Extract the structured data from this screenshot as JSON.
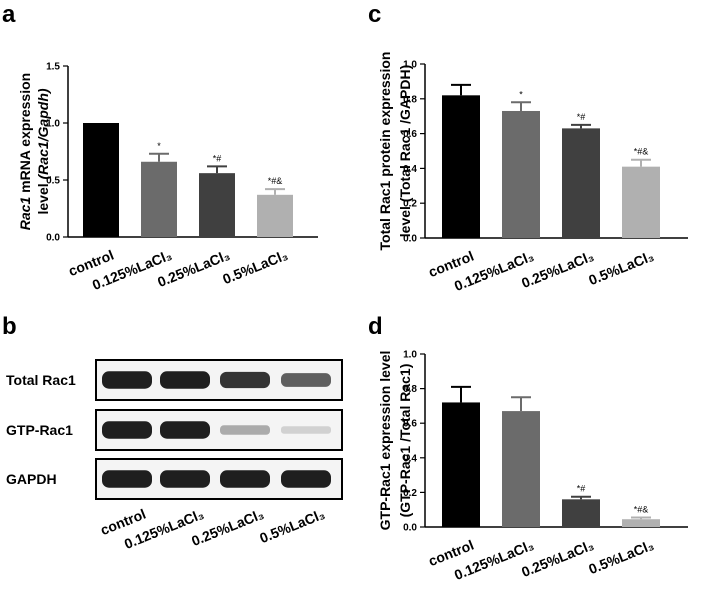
{
  "panels": {
    "a": {
      "letter": "a"
    },
    "b": {
      "letter": "b"
    },
    "c": {
      "letter": "c"
    },
    "d": {
      "letter": "d"
    }
  },
  "categories": [
    "control",
    "0.125%LaCl₃",
    "0.25%LaCl₃",
    "0.5%LaCl₃"
  ],
  "colors": {
    "bars": [
      "#000000",
      "#6b6b6b",
      "#404040",
      "#b0b0b0"
    ],
    "band": "#1e1e1e"
  },
  "chart_data": [
    {
      "id": "a",
      "type": "bar",
      "categories": [
        "control",
        "0.125%LaCl₃",
        "0.25%LaCl₃",
        "0.5%LaCl₃"
      ],
      "values": [
        1.0,
        0.66,
        0.56,
        0.37
      ],
      "errors": [
        0.0,
        0.07,
        0.06,
        0.05
      ],
      "annotations": [
        "",
        "*",
        "*#",
        "*#&"
      ],
      "ylabel_italic": "Rac1",
      "ylabel_line1": " mRNA expression",
      "ylabel_line2": "level (Rac1/Gapdh)",
      "ylim": [
        0,
        1.5
      ],
      "yticks": [
        "0.0",
        "0.5",
        "1.0",
        "1.5"
      ]
    },
    {
      "id": "c",
      "type": "bar",
      "categories": [
        "control",
        "0.125%LaCl₃",
        "0.25%LaCl₃",
        "0.5%LaCl₃"
      ],
      "values": [
        0.82,
        0.73,
        0.63,
        0.41
      ],
      "errors": [
        0.06,
        0.05,
        0.02,
        0.04
      ],
      "annotations": [
        "",
        "*",
        "*#",
        "*#&"
      ],
      "ylabel_line1": "Total Rac1 protein expression",
      "ylabel_line2": "level (Total Rac1 /GAPDH)",
      "ylim": [
        0,
        1.0
      ],
      "yticks": [
        "0.0",
        "0.2",
        "0.4",
        "0.6",
        "0.8",
        "1.0"
      ]
    },
    {
      "id": "d",
      "type": "bar",
      "categories": [
        "control",
        "0.125%LaCl₃",
        "0.25%LaCl₃",
        "0.5%LaCl₃"
      ],
      "values": [
        0.72,
        0.67,
        0.16,
        0.045
      ],
      "errors": [
        0.09,
        0.08,
        0.015,
        0.01
      ],
      "annotations": [
        "",
        "",
        "*#",
        "*#&"
      ],
      "ylabel_line1": "GTP-Rac1 expression level",
      "ylabel_line2": "(GTP-Rac1 /Total Rac1)",
      "ylim": [
        0,
        1.0
      ],
      "yticks": [
        "0.0",
        "0.2",
        "0.4",
        "0.6",
        "0.8",
        "1.0"
      ]
    }
  ],
  "blot": {
    "rows": [
      {
        "label": "Total Rac1",
        "intensities": [
          0.95,
          0.95,
          0.85,
          0.65
        ]
      },
      {
        "label": "GTP-Rac1",
        "intensities": [
          0.95,
          0.95,
          0.3,
          0.12
        ]
      },
      {
        "label": "GAPDH",
        "intensities": [
          0.95,
          0.95,
          0.95,
          0.95
        ]
      }
    ]
  }
}
